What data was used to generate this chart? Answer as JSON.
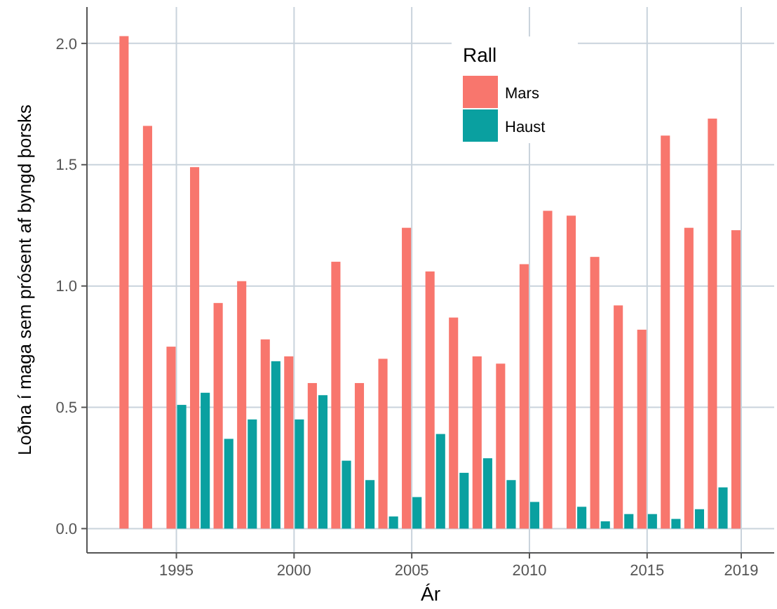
{
  "chart_data": {
    "type": "bar",
    "xlabel": "Ár",
    "ylabel": "Loðna í maga sem prósent af byngd þorsks",
    "legend_title": "Rall",
    "legend": "top",
    "x": [
      1993,
      1994,
      1995,
      1996,
      1997,
      1998,
      1999,
      2000,
      2001,
      2002,
      2003,
      2004,
      2005,
      2006,
      2007,
      2008,
      2009,
      2010,
      2011,
      2012,
      2013,
      2014,
      2015,
      2016,
      2017,
      2018,
      2019
    ],
    "series": [
      {
        "name": "Mars",
        "color": "#f8766d",
        "values": [
          2.03,
          1.66,
          0.75,
          1.49,
          0.93,
          1.02,
          0.78,
          0.71,
          0.6,
          1.1,
          0.6,
          0.7,
          1.24,
          1.06,
          0.87,
          0.71,
          0.68,
          1.09,
          1.31,
          1.29,
          1.12,
          0.92,
          0.82,
          1.62,
          1.24,
          1.69,
          1.23
        ]
      },
      {
        "name": "Haust",
        "color": "#0aa0a0",
        "values": [
          null,
          null,
          0.51,
          0.56,
          0.37,
          0.45,
          0.69,
          0.45,
          0.55,
          0.28,
          0.2,
          0.05,
          0.13,
          0.39,
          0.23,
          0.29,
          0.2,
          0.11,
          null,
          0.09,
          0.03,
          0.06,
          0.06,
          0.04,
          0.08,
          0.17,
          null
        ]
      }
    ],
    "xlim": [
      1991.2,
      2020.4
    ],
    "xticks": [
      1995,
      2000,
      2005,
      2010,
      2015,
      2019
    ],
    "ylim": [
      -0.1,
      2.15
    ],
    "yticks": [
      {
        "value": 0,
        "label": "0.0"
      },
      {
        "value": 0.5,
        "label": "0.5"
      },
      {
        "value": 1,
        "label": "1.0"
      },
      {
        "value": 1.5,
        "label": "1.5"
      },
      {
        "value": 2,
        "label": "2.0"
      }
    ],
    "grid": true
  }
}
